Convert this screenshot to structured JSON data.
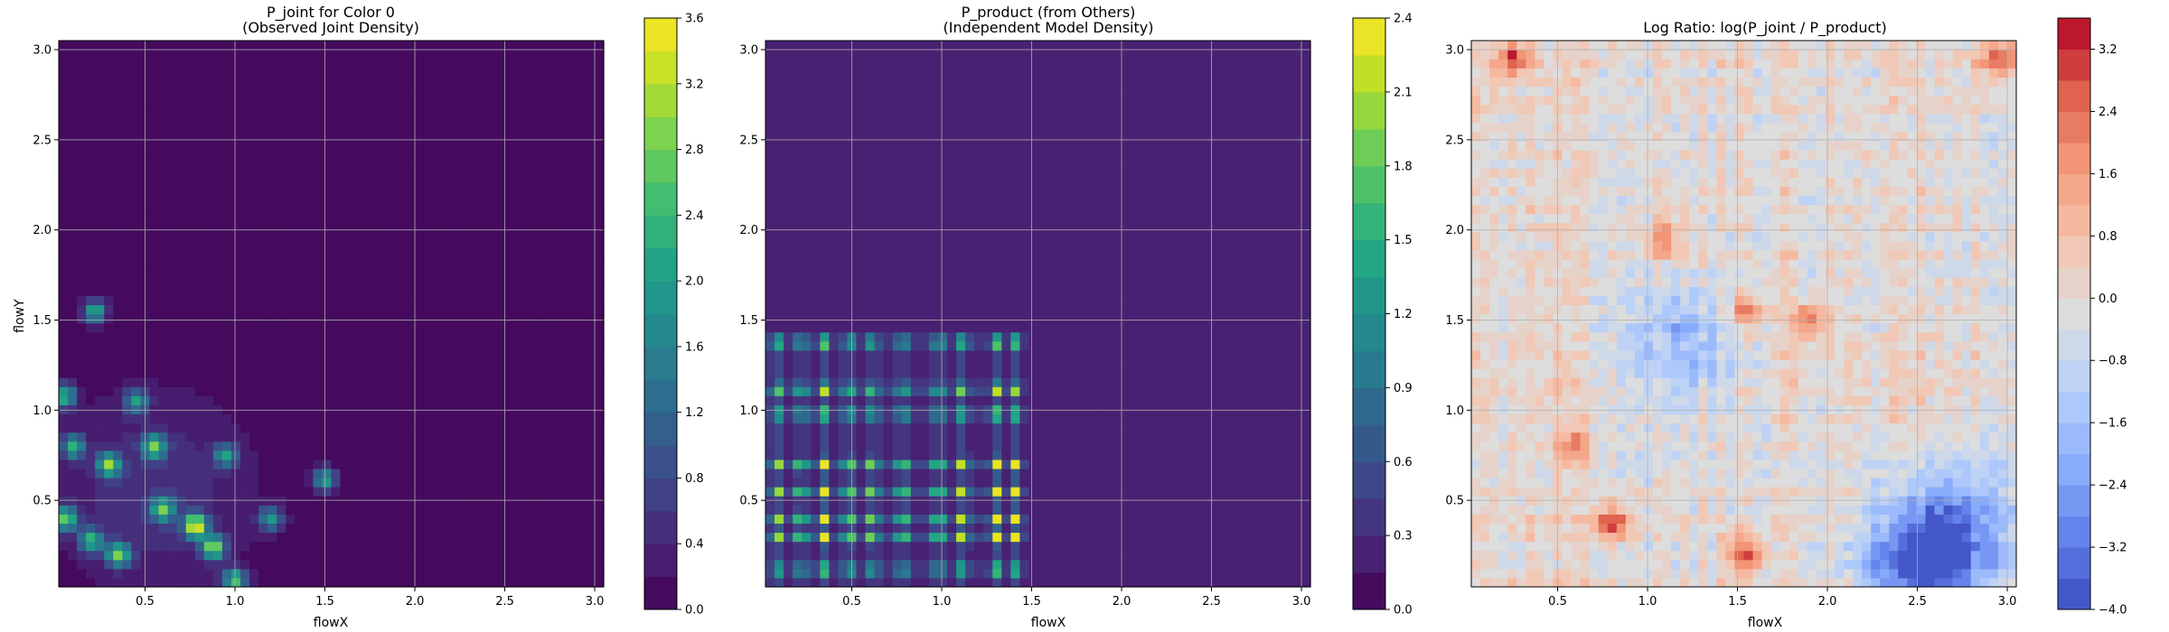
{
  "chart_data": [
    {
      "type": "heatmap",
      "title_lines": [
        "P_joint for Color 0",
        "(Observed Joint Density)"
      ],
      "xlabel": "flowX",
      "ylabel": "flowY",
      "xlim": [
        0.02,
        3.05
      ],
      "ylim": [
        0.02,
        3.05
      ],
      "xticks": [
        "0.5",
        "1.0",
        "1.5",
        "2.0",
        "2.5",
        "3.0"
      ],
      "yticks": [
        "0.5",
        "1.0",
        "1.5",
        "2.0",
        "2.5",
        "3.0"
      ],
      "grid": true,
      "colormap": "viridis",
      "colorbar": {
        "min": 0.0,
        "max": 3.6,
        "levels": 18,
        "ticks": [
          "0.0",
          "0.4",
          "0.8",
          "1.2",
          "1.6",
          "2.0",
          "2.4",
          "2.8",
          "3.2",
          "3.6"
        ]
      },
      "hotspots": [
        {
          "x": 0.78,
          "y": 0.36,
          "value": 3.4
        },
        {
          "x": 0.88,
          "y": 0.24,
          "value": 2.8
        },
        {
          "x": 0.35,
          "y": 0.2,
          "value": 2.6
        },
        {
          "x": 0.06,
          "y": 0.4,
          "value": 2.6
        },
        {
          "x": 0.22,
          "y": 1.55,
          "value": 2.2
        },
        {
          "x": 0.3,
          "y": 0.7,
          "value": 2.6
        },
        {
          "x": 1.5,
          "y": 0.62,
          "value": 2.0
        },
        {
          "x": 0.05,
          "y": 1.08,
          "value": 2.2
        },
        {
          "x": 0.55,
          "y": 0.8,
          "value": 2.4
        },
        {
          "x": 1.0,
          "y": 0.06,
          "value": 2.4
        },
        {
          "x": 0.1,
          "y": 0.8,
          "value": 2.0
        },
        {
          "x": 0.6,
          "y": 0.45,
          "value": 2.4
        },
        {
          "x": 1.2,
          "y": 0.4,
          "value": 1.8
        },
        {
          "x": 0.95,
          "y": 0.75,
          "value": 1.8
        },
        {
          "x": 0.45,
          "y": 1.05,
          "value": 1.8
        },
        {
          "x": 0.2,
          "y": 0.28,
          "value": 2.2
        }
      ]
    },
    {
      "type": "heatmap",
      "title_lines": [
        "P_product (from Others)",
        "(Independent Model Density)"
      ],
      "xlabel": "flowX",
      "ylabel": "",
      "xlim": [
        0.02,
        3.05
      ],
      "ylim": [
        0.02,
        3.05
      ],
      "xticks": [
        "0.5",
        "1.0",
        "1.5",
        "2.0",
        "2.5",
        "3.0"
      ],
      "yticks": [
        "0.5",
        "1.0",
        "1.5",
        "2.0",
        "2.5",
        "3.0"
      ],
      "grid": true,
      "colormap": "viridis",
      "colorbar": {
        "min": 0.0,
        "max": 2.4,
        "levels": 16,
        "ticks": [
          "0.0",
          "0.3",
          "0.6",
          "0.9",
          "1.2",
          "1.5",
          "1.8",
          "2.1",
          "2.4"
        ]
      },
      "marginal_x_peaks": [
        0.08,
        0.22,
        0.34,
        0.48,
        0.62,
        0.78,
        0.98,
        1.12,
        1.3,
        1.42
      ],
      "marginal_y_peaks": [
        0.12,
        0.3,
        0.4,
        0.55,
        0.7,
        0.98,
        1.12,
        1.38
      ]
    },
    {
      "type": "heatmap",
      "title_lines": [
        "Log Ratio: log(P_joint / P_product)"
      ],
      "xlabel": "flowX",
      "ylabel": "",
      "xlim": [
        0.02,
        3.05
      ],
      "ylim": [
        0.02,
        3.05
      ],
      "xticks": [
        "0.5",
        "1.0",
        "1.5",
        "2.0",
        "2.5",
        "3.0"
      ],
      "yticks": [
        "0.5",
        "1.0",
        "1.5",
        "2.0",
        "2.5",
        "3.0"
      ],
      "grid": true,
      "colormap": "coolwarm",
      "colorbar": {
        "min": -4.0,
        "max": 3.6,
        "levels": 19,
        "ticks": [
          "−4.0",
          "−3.2",
          "−2.4",
          "−1.6",
          "−0.8",
          "0.0",
          "0.8",
          "1.6",
          "2.4",
          "3.2"
        ]
      },
      "positive_regions": [
        {
          "x": 1.55,
          "y": 0.2,
          "value": 3.0
        },
        {
          "x": 0.8,
          "y": 0.38,
          "value": 3.0
        },
        {
          "x": 1.55,
          "y": 1.55,
          "value": 2.4
        },
        {
          "x": 1.9,
          "y": 1.5,
          "value": 2.2
        },
        {
          "x": 0.25,
          "y": 2.95,
          "value": 2.6
        },
        {
          "x": 2.95,
          "y": 2.95,
          "value": 3.0
        },
        {
          "x": 1.1,
          "y": 1.95,
          "value": 2.2
        },
        {
          "x": 0.6,
          "y": 0.8,
          "value": 2.0
        }
      ],
      "negative_regions": [
        {
          "x": 2.5,
          "y": 0.12,
          "value": -3.4
        },
        {
          "x": 2.7,
          "y": 0.35,
          "value": -2.6
        },
        {
          "x": 1.2,
          "y": 1.35,
          "value": -1.8
        }
      ]
    }
  ]
}
